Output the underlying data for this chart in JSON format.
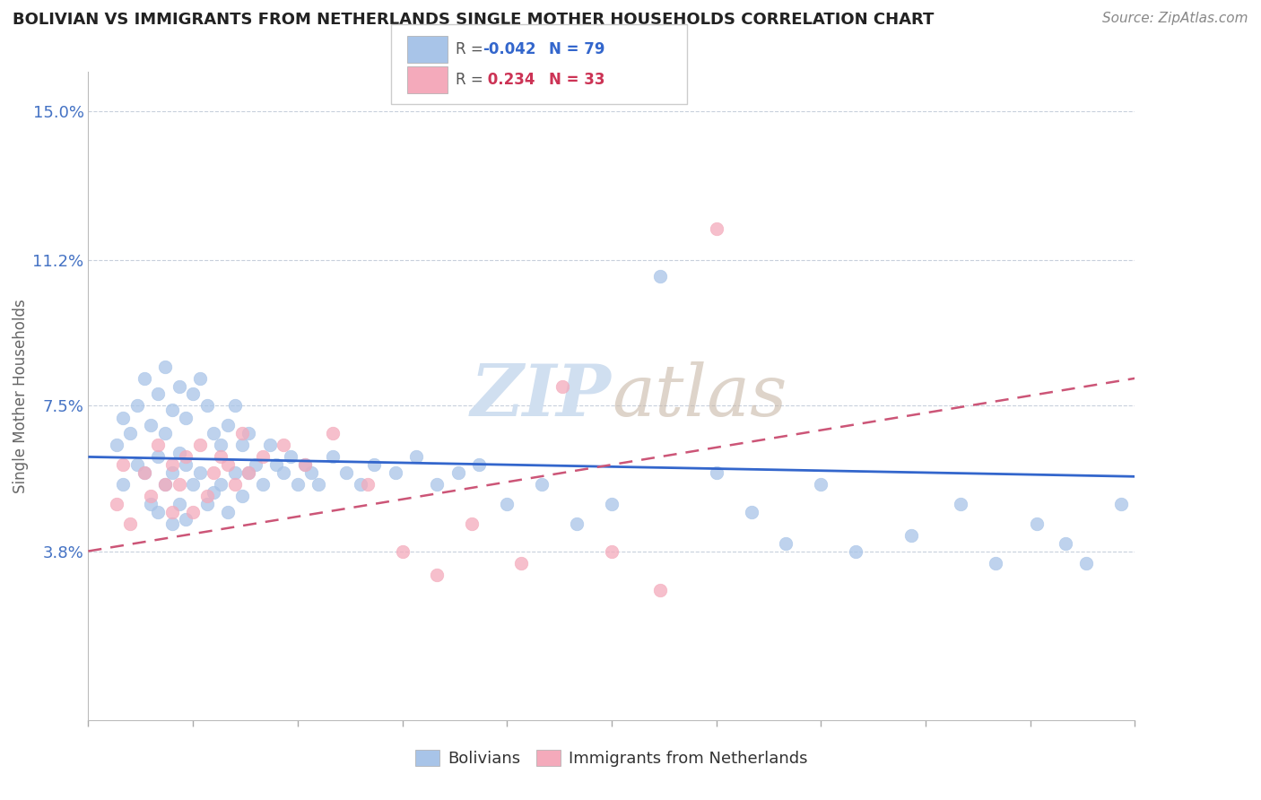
{
  "title": "BOLIVIAN VS IMMIGRANTS FROM NETHERLANDS SINGLE MOTHER HOUSEHOLDS CORRELATION CHART",
  "source_text": "Source: ZipAtlas.com",
  "ylabel": "Single Mother Households",
  "ytick_vals": [
    0.0,
    0.038,
    0.075,
    0.112,
    0.15
  ],
  "ytick_labels": [
    "",
    "3.8%",
    "7.5%",
    "11.2%",
    "15.0%"
  ],
  "xlim": [
    0.0,
    0.15
  ],
  "ylim": [
    -0.005,
    0.16
  ],
  "blue_R": -0.042,
  "blue_N": 79,
  "pink_R": 0.234,
  "pink_N": 33,
  "blue_color": "#a8c4e8",
  "pink_color": "#f4aabb",
  "blue_line_color": "#3366cc",
  "pink_line_color": "#cc5577",
  "watermark_color": "#d0dff0",
  "title_color": "#222222",
  "axis_label_color": "#4472c4",
  "legend_r_color_blue": "#3366cc",
  "legend_r_color_pink": "#cc3355",
  "background_color": "#ffffff",
  "blue_scatter_x": [
    0.004,
    0.005,
    0.005,
    0.006,
    0.007,
    0.007,
    0.008,
    0.008,
    0.009,
    0.009,
    0.01,
    0.01,
    0.01,
    0.011,
    0.011,
    0.011,
    0.012,
    0.012,
    0.012,
    0.013,
    0.013,
    0.013,
    0.014,
    0.014,
    0.014,
    0.015,
    0.015,
    0.016,
    0.016,
    0.017,
    0.017,
    0.018,
    0.018,
    0.019,
    0.019,
    0.02,
    0.02,
    0.021,
    0.021,
    0.022,
    0.022,
    0.023,
    0.023,
    0.024,
    0.025,
    0.026,
    0.027,
    0.028,
    0.029,
    0.03,
    0.031,
    0.032,
    0.033,
    0.035,
    0.037,
    0.039,
    0.041,
    0.044,
    0.047,
    0.05,
    0.053,
    0.056,
    0.06,
    0.065,
    0.07,
    0.075,
    0.082,
    0.09,
    0.095,
    0.1,
    0.105,
    0.11,
    0.118,
    0.125,
    0.13,
    0.136,
    0.14,
    0.143,
    0.148
  ],
  "blue_scatter_y": [
    0.065,
    0.072,
    0.055,
    0.068,
    0.06,
    0.075,
    0.082,
    0.058,
    0.07,
    0.05,
    0.078,
    0.062,
    0.048,
    0.085,
    0.068,
    0.055,
    0.074,
    0.058,
    0.045,
    0.08,
    0.063,
    0.05,
    0.072,
    0.06,
    0.046,
    0.078,
    0.055,
    0.082,
    0.058,
    0.075,
    0.05,
    0.068,
    0.053,
    0.065,
    0.055,
    0.07,
    0.048,
    0.075,
    0.058,
    0.065,
    0.052,
    0.068,
    0.058,
    0.06,
    0.055,
    0.065,
    0.06,
    0.058,
    0.062,
    0.055,
    0.06,
    0.058,
    0.055,
    0.062,
    0.058,
    0.055,
    0.06,
    0.058,
    0.062,
    0.055,
    0.058,
    0.06,
    0.05,
    0.055,
    0.045,
    0.05,
    0.108,
    0.058,
    0.048,
    0.04,
    0.055,
    0.038,
    0.042,
    0.05,
    0.035,
    0.045,
    0.04,
    0.035,
    0.05
  ],
  "pink_scatter_x": [
    0.004,
    0.005,
    0.006,
    0.008,
    0.009,
    0.01,
    0.011,
    0.012,
    0.012,
    0.013,
    0.014,
    0.015,
    0.016,
    0.017,
    0.018,
    0.019,
    0.02,
    0.021,
    0.022,
    0.023,
    0.025,
    0.028,
    0.031,
    0.035,
    0.04,
    0.045,
    0.05,
    0.055,
    0.062,
    0.068,
    0.075,
    0.082,
    0.09
  ],
  "pink_scatter_y": [
    0.05,
    0.06,
    0.045,
    0.058,
    0.052,
    0.065,
    0.055,
    0.06,
    0.048,
    0.055,
    0.062,
    0.048,
    0.065,
    0.052,
    0.058,
    0.062,
    0.06,
    0.055,
    0.068,
    0.058,
    0.062,
    0.065,
    0.06,
    0.068,
    0.055,
    0.038,
    0.032,
    0.045,
    0.035,
    0.08,
    0.038,
    0.028,
    0.12
  ],
  "blue_trendline_x": [
    0.0,
    0.15
  ],
  "blue_trendline_y": [
    0.062,
    0.057
  ],
  "pink_trendline_x": [
    0.0,
    0.15
  ],
  "pink_trendline_y": [
    0.038,
    0.082
  ]
}
